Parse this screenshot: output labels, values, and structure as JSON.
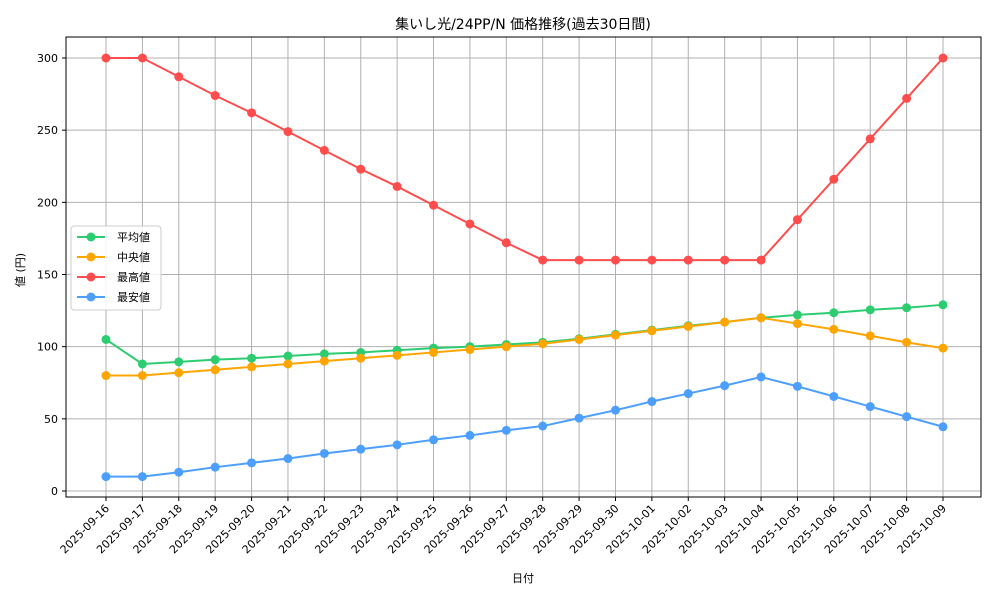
{
  "chart_data": {
    "type": "line",
    "title": "集いし光/24PP/N 価格推移(過去30日間)",
    "xlabel": "日付",
    "ylabel": "値 (円)",
    "ylim": [
      -5,
      315
    ],
    "yticks": [
      0,
      50,
      100,
      150,
      200,
      250,
      300
    ],
    "grid": true,
    "legend_position": "center left",
    "x": [
      "2025-09-16",
      "2025-09-17",
      "2025-09-18",
      "2025-09-19",
      "2025-09-20",
      "2025-09-21",
      "2025-09-22",
      "2025-09-23",
      "2025-09-24",
      "2025-09-25",
      "2025-09-26",
      "2025-09-27",
      "2025-09-28",
      "2025-09-29",
      "2025-09-30",
      "2025-10-01",
      "2025-10-02",
      "2025-10-03",
      "2025-10-04",
      "2025-10-05",
      "2025-10-06",
      "2025-10-07",
      "2025-10-08",
      "2025-10-09"
    ],
    "series": [
      {
        "name": "平均値",
        "color": "#2ecc71",
        "values": [
          105,
          88,
          89.5,
          91,
          92,
          93.5,
          95,
          96,
          97.5,
          99,
          100,
          101.5,
          103,
          105.5,
          108.5,
          111.5,
          114.5,
          117,
          120,
          122,
          123.5,
          125.5,
          127,
          129
        ]
      },
      {
        "name": "中央値",
        "color": "#ffa500",
        "values": [
          80,
          80,
          82,
          84,
          86,
          88,
          90,
          92,
          94,
          96,
          98,
          100,
          102,
          105,
          108,
          111,
          114,
          117,
          120,
          116,
          112,
          107.5,
          103,
          99
        ]
      },
      {
        "name": "最高値",
        "color": "#ff4d4d",
        "values": [
          300,
          300,
          287,
          274,
          262,
          249,
          236,
          223,
          211,
          198,
          185,
          172,
          160,
          160,
          160,
          160,
          160,
          160,
          160,
          188,
          216,
          244,
          272,
          300
        ]
      },
      {
        "name": "最安値",
        "color": "#4d9fff",
        "values": [
          10,
          10,
          13,
          16.5,
          19.5,
          22.5,
          26,
          29,
          32,
          35.5,
          38.5,
          42,
          45,
          50.5,
          56,
          62,
          67.5,
          73,
          79,
          72.5,
          65.5,
          58.5,
          51.5,
          44.5
        ]
      }
    ]
  }
}
